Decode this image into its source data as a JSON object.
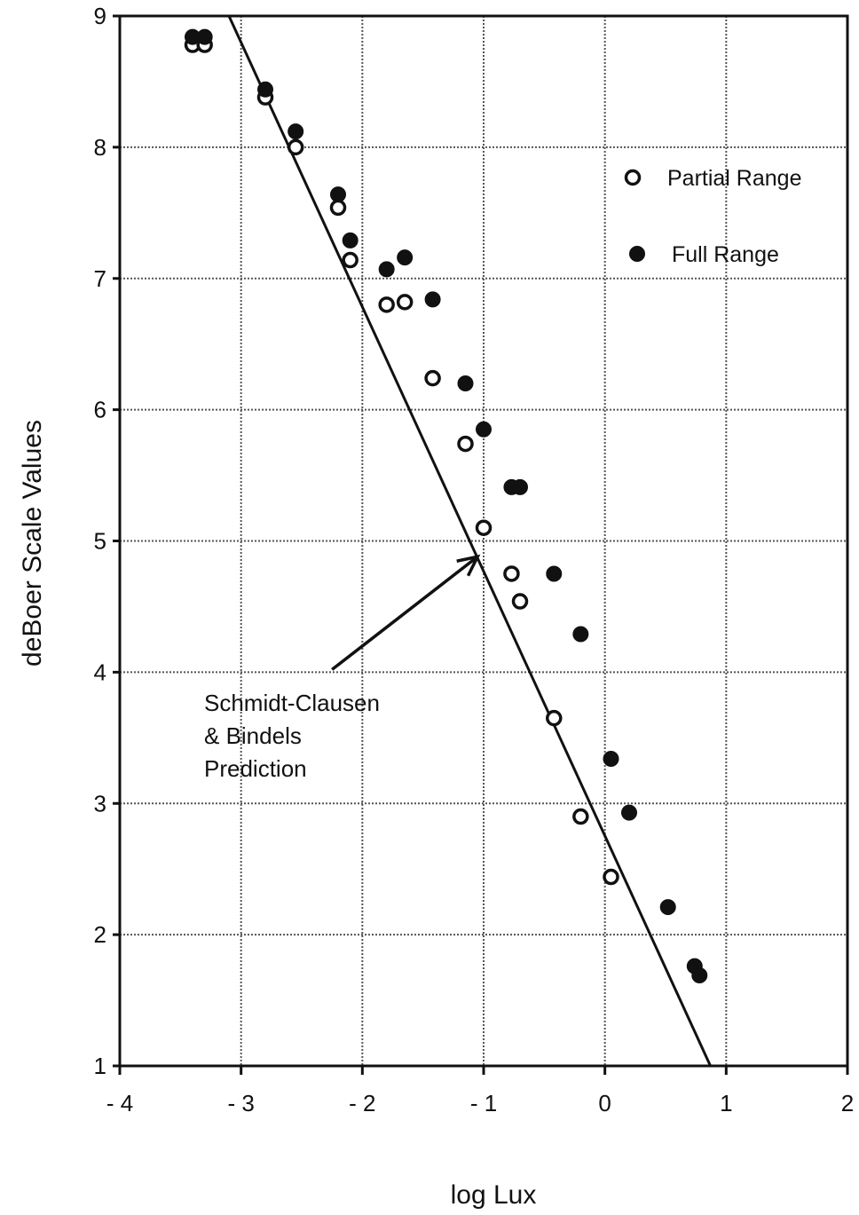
{
  "chart_data": {
    "type": "scatter",
    "xlabel": "log Lux",
    "ylabel": "deBoer Scale Values",
    "xlim": [
      -4,
      2
    ],
    "ylim": [
      1,
      9
    ],
    "x_ticks": [
      {
        "value": -4,
        "label": "- 4"
      },
      {
        "value": -3,
        "label": "- 3"
      },
      {
        "value": -2,
        "label": "- 2"
      },
      {
        "value": -1,
        "label": "- 1"
      },
      {
        "value": 0,
        "label": "0"
      },
      {
        "value": 1,
        "label": "1"
      },
      {
        "value": 2,
        "label": "2"
      }
    ],
    "y_ticks": [
      {
        "value": 1,
        "label": "1"
      },
      {
        "value": 2,
        "label": "2"
      },
      {
        "value": 3,
        "label": "3"
      },
      {
        "value": 4,
        "label": "4"
      },
      {
        "value": 5,
        "label": "5"
      },
      {
        "value": 6,
        "label": "6"
      },
      {
        "value": 7,
        "label": "7"
      },
      {
        "value": 8,
        "label": "8"
      },
      {
        "value": 9,
        "label": "9"
      }
    ],
    "grid": true,
    "legend_position": "top-right",
    "series": [
      {
        "name": "Partial Range",
        "marker": "open-circle",
        "points": [
          [
            -3.4,
            8.78
          ],
          [
            -3.3,
            8.78
          ],
          [
            -2.8,
            8.38
          ],
          [
            -2.55,
            8.0
          ],
          [
            -2.2,
            7.54
          ],
          [
            -2.1,
            7.14
          ],
          [
            -1.8,
            6.8
          ],
          [
            -1.65,
            6.82
          ],
          [
            -1.42,
            6.24
          ],
          [
            -1.15,
            5.74
          ],
          [
            -1.0,
            5.1
          ],
          [
            -0.77,
            4.75
          ],
          [
            -0.7,
            4.54
          ],
          [
            -0.42,
            3.65
          ],
          [
            -0.2,
            2.9
          ],
          [
            0.05,
            2.44
          ]
        ]
      },
      {
        "name": "Full Range",
        "marker": "filled-circle",
        "points": [
          [
            -3.4,
            8.84
          ],
          [
            -3.3,
            8.84
          ],
          [
            -2.8,
            8.44
          ],
          [
            -2.55,
            8.12
          ],
          [
            -2.2,
            7.64
          ],
          [
            -2.1,
            7.29
          ],
          [
            -1.8,
            7.07
          ],
          [
            -1.65,
            7.16
          ],
          [
            -1.42,
            6.84
          ],
          [
            -1.15,
            6.2
          ],
          [
            -1.0,
            5.85
          ],
          [
            -0.77,
            5.41
          ],
          [
            -0.7,
            5.41
          ],
          [
            -0.42,
            4.75
          ],
          [
            -0.2,
            4.29
          ],
          [
            0.05,
            3.34
          ],
          [
            0.2,
            2.93
          ],
          [
            0.52,
            2.21
          ],
          [
            0.74,
            1.76
          ],
          [
            0.78,
            1.69
          ]
        ]
      }
    ],
    "prediction_line": {
      "label_lines": [
        "Schmidt-Clausen",
        "& Bindels",
        "Prediction"
      ],
      "from": [
        -3.1,
        9.0
      ],
      "to": [
        0.87,
        1.0
      ]
    },
    "annotation_arrow": {
      "from": [
        -2.25,
        4.02
      ],
      "to": [
        -1.05,
        4.88
      ]
    }
  }
}
